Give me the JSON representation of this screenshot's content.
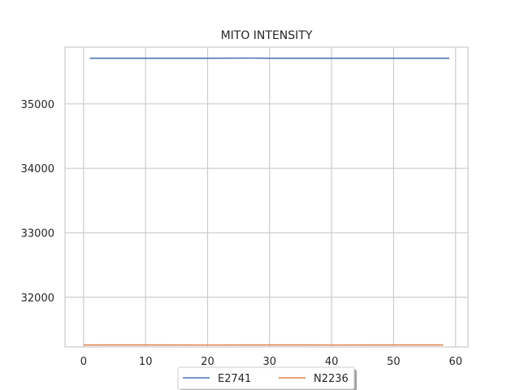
{
  "chart_data": {
    "type": "line",
    "title": "MITO INTENSITY",
    "xlabel": "",
    "ylabel": "",
    "xlim": [
      -3,
      62
    ],
    "ylim": [
      31230,
      35880
    ],
    "xticks": [
      0,
      10,
      20,
      30,
      40,
      50,
      60
    ],
    "yticks": [
      32000,
      33000,
      34000,
      35000
    ],
    "grid": true,
    "legend": {
      "placement": "bottom-center",
      "ncol": 2
    },
    "series": [
      {
        "name": "E2741",
        "color": "#4c72b0",
        "x": [
          1,
          10,
          20,
          27,
          30,
          40,
          50,
          59
        ],
        "values": [
          35707,
          35707,
          35707,
          35710,
          35708,
          35707,
          35707,
          35707
        ]
      },
      {
        "name": "N2236",
        "color": "#dd8452",
        "x": [
          0,
          10,
          20,
          30,
          40,
          50,
          58
        ],
        "values": [
          31260,
          31261,
          31260,
          31261,
          31260,
          31261,
          31261
        ]
      }
    ]
  }
}
